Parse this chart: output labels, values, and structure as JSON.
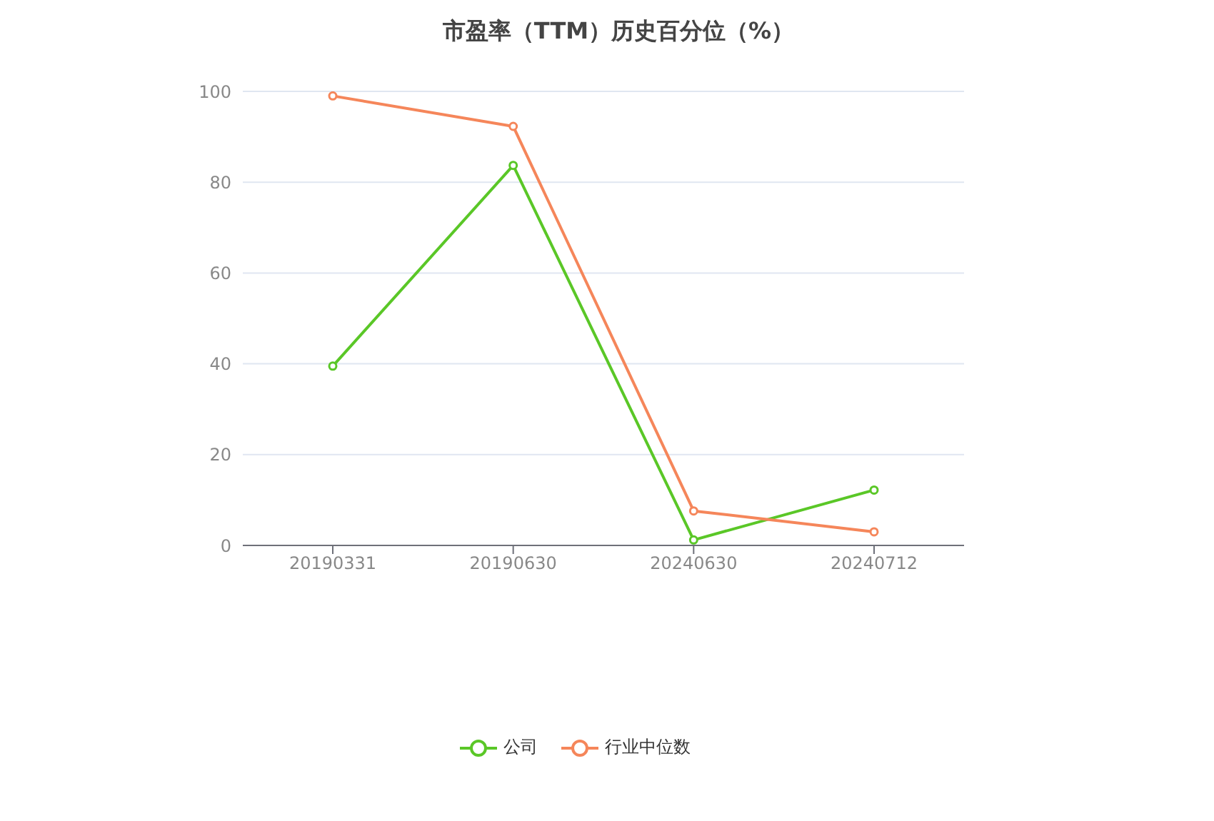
{
  "chart_data": {
    "type": "line",
    "title": "市盈率（TTM）历史百分位（%）",
    "categories": [
      "20190331",
      "20190630",
      "20240630",
      "20240712"
    ],
    "series": [
      {
        "name": "公司",
        "color": "#5ac727",
        "values": [
          39.5,
          83.7,
          1.2,
          12.2
        ]
      },
      {
        "name": "行业中位数",
        "color": "#f5865a",
        "values": [
          99,
          92.3,
          7.6,
          3.0
        ]
      }
    ],
    "ylim": [
      0,
      100
    ],
    "yticks": [
      0,
      20,
      40,
      60,
      80,
      100
    ],
    "grid": "y",
    "legend": "bottom",
    "marker": "circle",
    "line_style": "solid"
  }
}
